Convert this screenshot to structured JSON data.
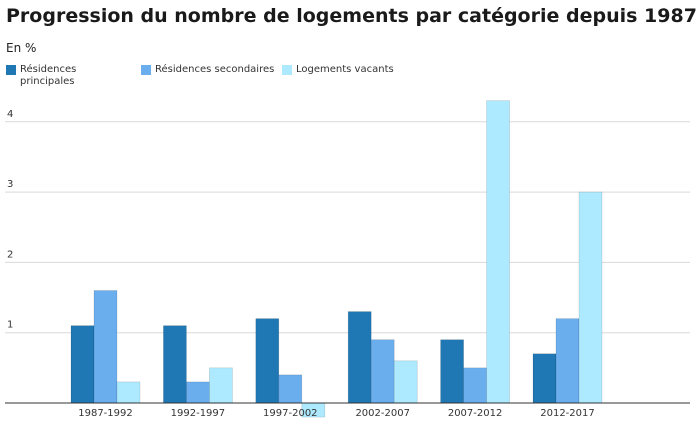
{
  "chart_data": {
    "type": "bar",
    "title": "Progression du nombre de logements par catégorie depuis 1987",
    "unit_label": "En %",
    "categories": [
      "1987-1992",
      "1992-1997",
      "1997-2002",
      "2002-2007",
      "2007-2012",
      "2012-2017"
    ],
    "series": [
      {
        "name": "Résidences principales",
        "color": "#1f77b4",
        "values": [
          1.1,
          1.1,
          1.2,
          1.3,
          0.9,
          0.7
        ]
      },
      {
        "name": "Résidences secondaires",
        "color": "#6aaeee",
        "values": [
          1.6,
          0.3,
          0.4,
          0.9,
          0.5,
          1.2
        ]
      },
      {
        "name": "Logements vacants",
        "color": "#aeeaff",
        "values": [
          0.3,
          0.5,
          -0.2,
          0.6,
          4.3,
          3.0
        ]
      }
    ],
    "yticks": [
      "1",
      "2",
      "3",
      "4"
    ],
    "ylim": [
      -0.2,
      4.4
    ],
    "grid": true,
    "legend_position": "top"
  }
}
